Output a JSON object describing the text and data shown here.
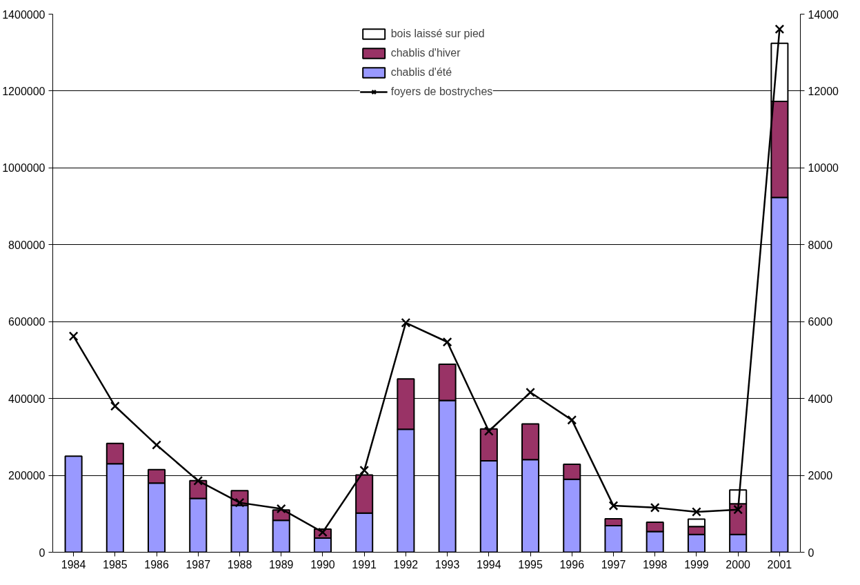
{
  "chart_data": {
    "type": "bar",
    "stacked": true,
    "categories": [
      "1984",
      "1985",
      "1986",
      "1987",
      "1988",
      "1989",
      "1990",
      "1991",
      "1992",
      "1993",
      "1994",
      "1995",
      "1996",
      "1997",
      "1998",
      "1999",
      "2000",
      "2001"
    ],
    "series": [
      {
        "name": "chablis d'été",
        "color": "#9999ff",
        "values": [
          250000,
          230000,
          180000,
          140000,
          122000,
          83000,
          37000,
          102000,
          320000,
          395000,
          238000,
          241000,
          190000,
          69000,
          54000,
          46000,
          46000,
          923000
        ]
      },
      {
        "name": "chablis d'hiver",
        "color": "#993366",
        "values": [
          null,
          53000,
          35000,
          46000,
          38000,
          27000,
          23000,
          99000,
          131000,
          94000,
          83000,
          93000,
          39000,
          18000,
          24000,
          21000,
          80000,
          250000
        ]
      },
      {
        "name": "bois laissé sur pied",
        "color": "#ffffff",
        "values": [
          null,
          null,
          null,
          null,
          null,
          null,
          null,
          null,
          null,
          null,
          null,
          null,
          null,
          null,
          null,
          19000,
          36000,
          151000
        ]
      },
      {
        "name": "foyers de bostryches",
        "type": "line",
        "axis": "y2",
        "color": "#000000",
        "values": [
          5620,
          3800,
          2790,
          1860,
          1290,
          1130,
          520,
          2130,
          5970,
          5470,
          3150,
          4160,
          3440,
          1210,
          1160,
          1050,
          1110,
          13610
        ]
      }
    ],
    "ylim": [
      0,
      1400000
    ],
    "yticks": [
      0,
      200000,
      400000,
      600000,
      800000,
      1000000,
      1200000,
      1400000
    ],
    "y2lim": [
      0,
      14000
    ],
    "y2ticks": [
      0,
      2000,
      4000,
      6000,
      8000,
      10000,
      12000,
      14000
    ],
    "grid": "y",
    "legend": "top",
    "marker": "cross",
    "line_style": "solid"
  }
}
